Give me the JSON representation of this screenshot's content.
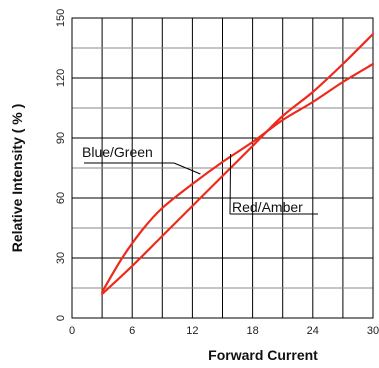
{
  "chart_data": {
    "type": "line",
    "title": "",
    "xlabel": "Forward Current",
    "ylabel": "Relative Intensity ( % )",
    "xlim": [
      0,
      30
    ],
    "ylim": [
      0,
      150
    ],
    "xticks": [
      0,
      6,
      12,
      18,
      24,
      30
    ],
    "yticks": [
      0,
      30,
      60,
      90,
      120,
      150
    ],
    "grid": true,
    "line_color": "#ee2a1c",
    "series": [
      {
        "name": "Blue/Green",
        "x": [
          3,
          5,
          7,
          9,
          12,
          15,
          18,
          21,
          24,
          27,
          30
        ],
        "y": [
          13,
          30,
          44,
          55,
          67,
          78,
          88,
          99,
          108,
          118,
          127
        ]
      },
      {
        "name": "Red/Amber",
        "x": [
          3,
          6,
          9,
          12,
          15,
          18,
          21,
          24,
          27,
          30
        ],
        "y": [
          12,
          26,
          41,
          56,
          71,
          86,
          101,
          113,
          127,
          142
        ]
      }
    ]
  }
}
